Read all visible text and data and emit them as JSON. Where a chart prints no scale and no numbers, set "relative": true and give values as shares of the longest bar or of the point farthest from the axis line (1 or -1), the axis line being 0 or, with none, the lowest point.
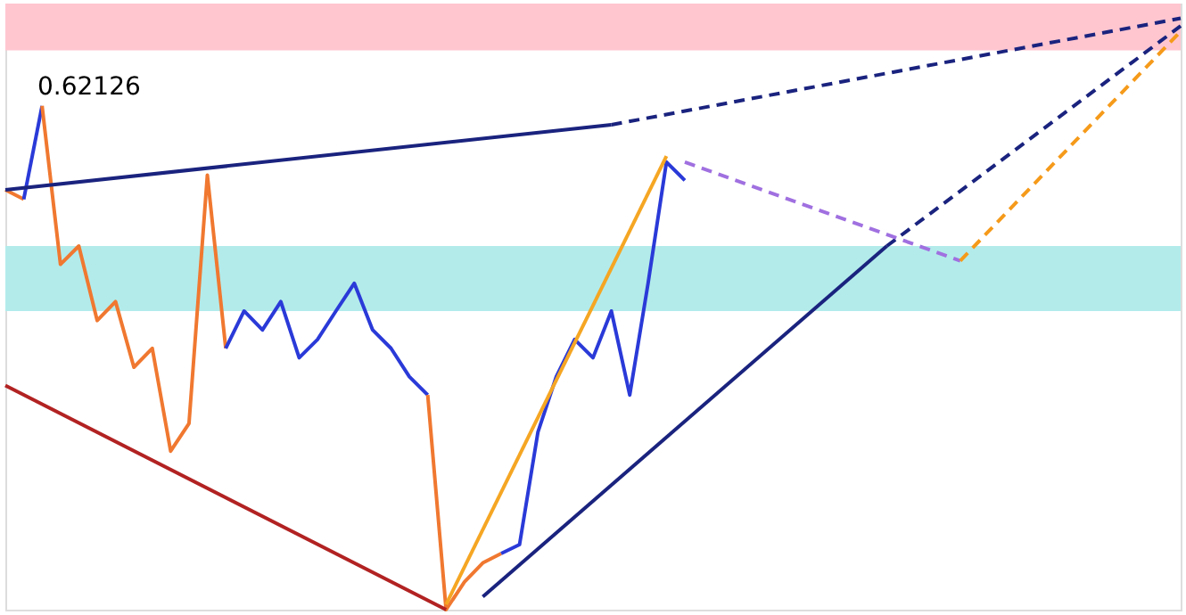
{
  "chart_data": {
    "type": "line",
    "relative": true,
    "marker": "none",
    "categories": [
      null,
      null,
      null,
      null,
      null,
      null,
      null,
      null,
      null,
      null,
      null,
      null,
      null,
      null,
      null,
      null,
      null,
      null,
      null,
      null,
      null,
      null,
      null,
      null,
      null,
      null,
      null,
      null,
      null,
      null,
      null,
      null,
      null,
      null,
      null,
      null,
      null,
      null,
      null,
      null,
      null,
      null,
      null,
      null,
      null,
      null,
      null,
      null,
      null,
      null,
      null,
      null,
      null,
      null,
      null,
      null,
      null,
      null,
      null,
      null,
      null,
      null,
      null,
      null,
      null
    ],
    "bands": [
      {
        "axis": "y",
        "from": 0.946,
        "to": 1.025,
        "color": "#ffc6d0"
      },
      {
        "axis": "y",
        "from": 0.505,
        "to": 0.615,
        "color": "#b3ebeb"
      }
    ],
    "annotations": [
      "0.62126"
    ],
    "series": [
      {
        "color": "#f07830",
        "values": [
          0.71,
          0.694,
          null,
          null,
          null,
          null,
          null,
          null,
          null,
          null,
          null,
          null,
          null,
          null,
          null,
          null,
          null,
          null,
          null,
          null,
          null,
          null,
          null,
          null,
          null,
          null,
          null,
          null,
          null,
          null,
          null,
          null,
          null,
          null,
          null,
          null,
          null,
          null,
          null,
          null,
          null,
          null,
          null,
          null,
          null,
          null,
          null,
          null,
          null,
          null,
          null,
          null,
          null,
          null,
          null,
          null,
          null,
          null,
          null,
          null,
          null,
          null,
          null,
          null,
          null
        ]
      },
      {
        "color": "#2a3ad8",
        "values": [
          null,
          0.694,
          0.852,
          null,
          null,
          null,
          null,
          null,
          null,
          null,
          null,
          null,
          null,
          null,
          null,
          null,
          null,
          null,
          null,
          null,
          null,
          null,
          null,
          null,
          null,
          null,
          null,
          null,
          null,
          null,
          null,
          null,
          null,
          null,
          null,
          null,
          null,
          null,
          null,
          null,
          null,
          null,
          null,
          null,
          null,
          null,
          null,
          null,
          null,
          null,
          null,
          null,
          null,
          null,
          null,
          null,
          null,
          null,
          null,
          null,
          null,
          null,
          null,
          null,
          null
        ]
      },
      {
        "color": "#f07830",
        "values": [
          null,
          null,
          0.852,
          0.584,
          0.615,
          0.489,
          0.521,
          0.41,
          0.442,
          0.268,
          0.315,
          0.735,
          0.442,
          null,
          null,
          null,
          null,
          null,
          null,
          null,
          null,
          null,
          null,
          null,
          null,
          null,
          null,
          null,
          null,
          null,
          null,
          null,
          null,
          null,
          null,
          null,
          null,
          null,
          null,
          null,
          null,
          null,
          null,
          null,
          null,
          null,
          null,
          null,
          null,
          null,
          null,
          null,
          null,
          null,
          null,
          null,
          null,
          null,
          null,
          null,
          null,
          null,
          null,
          null,
          null
        ]
      },
      {
        "color": "#2a3ad8",
        "values": [
          null,
          null,
          null,
          null,
          null,
          null,
          null,
          null,
          null,
          null,
          null,
          null,
          0.442,
          0.505,
          0.473,
          0.521,
          0.426,
          0.457,
          0.505,
          0.552,
          0.473,
          0.442,
          0.394,
          0.363,
          null,
          null,
          null,
          null,
          null,
          null,
          null,
          null,
          null,
          null,
          null,
          null,
          null,
          null,
          null,
          null,
          null,
          null,
          null,
          null,
          null,
          null,
          null,
          null,
          null,
          null,
          null,
          null,
          null,
          null,
          null,
          null,
          null,
          null,
          null,
          null,
          null,
          null,
          null,
          null,
          null
        ]
      },
      {
        "color": "#f07830",
        "values": [
          null,
          null,
          null,
          null,
          null,
          null,
          null,
          null,
          null,
          null,
          null,
          null,
          null,
          null,
          null,
          null,
          null,
          null,
          null,
          null,
          null,
          null,
          null,
          0.363,
          0,
          0.047,
          0.079,
          0.095,
          null,
          null,
          null,
          null,
          null,
          null,
          null,
          null,
          null,
          null,
          null,
          null,
          null,
          null,
          null,
          null,
          null,
          null,
          null,
          null,
          null,
          null,
          null,
          null,
          null,
          null,
          null,
          null,
          null,
          null,
          null,
          null,
          null,
          null,
          null,
          null,
          null
        ]
      },
      {
        "color": "#2a3ad8",
        "values": [
          null,
          null,
          null,
          null,
          null,
          null,
          null,
          null,
          null,
          null,
          null,
          null,
          null,
          null,
          null,
          null,
          null,
          null,
          null,
          null,
          null,
          null,
          null,
          null,
          null,
          null,
          null,
          0.095,
          0.11,
          0.3,
          0.394,
          0.457,
          0.426,
          0.505,
          0.363,
          0.552,
          0.757,
          0.726,
          null,
          null,
          null,
          null,
          null,
          null,
          null,
          null,
          null,
          null,
          null,
          null,
          null,
          null,
          null,
          null,
          null,
          null,
          null,
          null,
          null,
          null,
          null,
          null,
          null,
          null,
          null
        ]
      },
      {
        "color": "#b22222",
        "values": [
          0.379,
          null,
          null,
          null,
          null,
          null,
          null,
          null,
          null,
          null,
          null,
          null,
          null,
          null,
          null,
          null,
          null,
          null,
          null,
          null,
          null,
          null,
          null,
          null,
          0,
          null,
          null,
          null,
          null,
          null,
          null,
          null,
          null,
          null,
          null,
          null,
          null,
          null,
          null,
          null,
          null,
          null,
          null,
          null,
          null,
          null,
          null,
          null,
          null,
          null,
          null,
          null,
          null,
          null,
          null,
          null,
          null,
          null,
          null,
          null,
          null,
          null,
          null,
          null,
          null
        ]
      },
      {
        "color": "#1a237e",
        "values": [
          0.71,
          null,
          null,
          null,
          null,
          null,
          null,
          null,
          null,
          null,
          null,
          null,
          null,
          null,
          null,
          null,
          null,
          null,
          null,
          null,
          null,
          null,
          null,
          null,
          null,
          null,
          null,
          null,
          null,
          null,
          null,
          null,
          null,
          0.82,
          null,
          null,
          null,
          null,
          null,
          null,
          null,
          null,
          null,
          null,
          null,
          null,
          null,
          null,
          null,
          null,
          null,
          null,
          null,
          null,
          null,
          null,
          null,
          null,
          null,
          null,
          null,
          null,
          null,
          null,
          null
        ]
      },
      {
        "color": "#1a237e",
        "line_style": "dashed",
        "values": [
          null,
          null,
          null,
          null,
          null,
          null,
          null,
          null,
          null,
          null,
          null,
          null,
          null,
          null,
          null,
          null,
          null,
          null,
          null,
          null,
          null,
          null,
          null,
          null,
          null,
          null,
          null,
          null,
          null,
          null,
          null,
          null,
          null,
          0.82,
          null,
          null,
          null,
          null,
          null,
          null,
          null,
          null,
          null,
          null,
          null,
          null,
          null,
          null,
          null,
          null,
          null,
          null,
          null,
          null,
          null,
          null,
          null,
          null,
          null,
          null,
          null,
          null,
          null,
          null,
          1
        ]
      },
      {
        "color": "#f5a623",
        "values": [
          null,
          null,
          null,
          null,
          null,
          null,
          null,
          null,
          null,
          null,
          null,
          null,
          null,
          null,
          null,
          null,
          null,
          null,
          null,
          null,
          null,
          null,
          null,
          null,
          0.009,
          null,
          null,
          null,
          null,
          null,
          null,
          null,
          null,
          null,
          null,
          null,
          0.767,
          null,
          null,
          null,
          null,
          null,
          null,
          null,
          null,
          null,
          null,
          null,
          null,
          null,
          null,
          null,
          null,
          null,
          null,
          null,
          null,
          null,
          null,
          null,
          null,
          null,
          null,
          null,
          null
        ]
      },
      {
        "color": "#1a237e",
        "values": [
          null,
          null,
          null,
          null,
          null,
          null,
          null,
          null,
          null,
          null,
          null,
          null,
          null,
          null,
          null,
          null,
          null,
          null,
          null,
          null,
          null,
          null,
          null,
          null,
          null,
          null,
          0.022,
          null,
          null,
          null,
          null,
          null,
          null,
          null,
          null,
          null,
          null,
          null,
          null,
          null,
          null,
          null,
          null,
          null,
          null,
          null,
          null,
          null,
          0.615,
          null,
          null,
          null,
          null,
          null,
          null,
          null,
          null,
          null,
          null,
          null,
          null,
          null,
          null,
          null,
          null
        ]
      },
      {
        "color": "#1a237e",
        "line_style": "dashed",
        "values": [
          null,
          null,
          null,
          null,
          null,
          null,
          null,
          null,
          null,
          null,
          null,
          null,
          null,
          null,
          null,
          null,
          null,
          null,
          null,
          null,
          null,
          null,
          null,
          null,
          null,
          null,
          null,
          null,
          null,
          null,
          null,
          null,
          null,
          null,
          null,
          null,
          null,
          null,
          null,
          null,
          null,
          null,
          null,
          null,
          null,
          null,
          null,
          null,
          0.615,
          null,
          null,
          null,
          null,
          null,
          null,
          null,
          null,
          null,
          null,
          null,
          null,
          null,
          null,
          null,
          0.987
        ]
      },
      {
        "color": "#a070e0",
        "line_style": "dashed",
        "values": [
          null,
          null,
          null,
          null,
          null,
          null,
          null,
          null,
          null,
          null,
          null,
          null,
          null,
          null,
          null,
          null,
          null,
          null,
          null,
          null,
          null,
          null,
          null,
          null,
          null,
          null,
          null,
          null,
          null,
          null,
          null,
          null,
          null,
          null,
          null,
          null,
          null,
          0.757,
          null,
          null,
          null,
          null,
          null,
          null,
          null,
          null,
          null,
          null,
          null,
          null,
          null,
          null,
          0.59,
          null,
          null,
          null,
          null,
          null,
          null,
          null,
          null,
          null,
          null,
          null,
          null
        ]
      },
      {
        "color": "#f59a1a",
        "line_style": "dashed",
        "values": [
          null,
          null,
          null,
          null,
          null,
          null,
          null,
          null,
          null,
          null,
          null,
          null,
          null,
          null,
          null,
          null,
          null,
          null,
          null,
          null,
          null,
          null,
          null,
          null,
          null,
          null,
          null,
          null,
          null,
          null,
          null,
          null,
          null,
          null,
          null,
          null,
          null,
          null,
          null,
          null,
          null,
          null,
          null,
          null,
          null,
          null,
          null,
          null,
          null,
          null,
          null,
          null,
          0.59,
          null,
          null,
          null,
          null,
          null,
          null,
          null,
          null,
          null,
          null,
          null,
          0.978
        ]
      }
    ]
  }
}
